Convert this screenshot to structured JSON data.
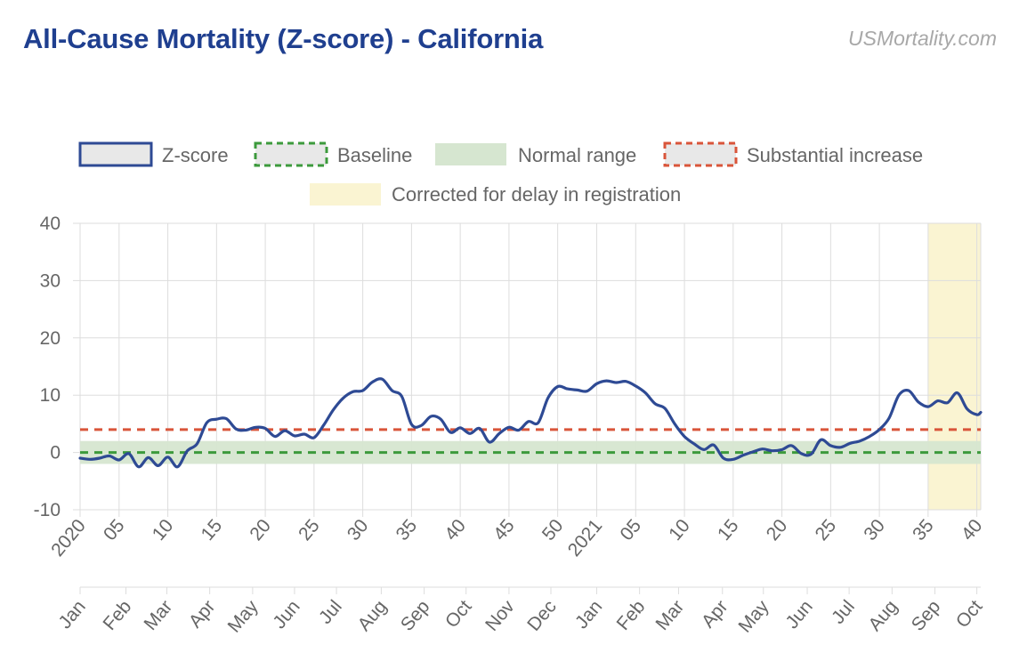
{
  "title": "All-Cause Mortality (Z-score) - California",
  "watermark": "USMortality.com",
  "colors": {
    "zscore": "#2e4a94",
    "baseline": "#3c9a3c",
    "normal_range": "#d6e6d0",
    "substantial": "#d9553a",
    "corrected": "#faf4d2",
    "grid": "#dddddd",
    "text": "#666666"
  },
  "legend": {
    "zscore": "Z-score",
    "baseline": "Baseline",
    "normal_range": "Normal range",
    "substantial": "Substantial increase",
    "corrected": "Corrected for delay in registration"
  },
  "chart_data": {
    "type": "line",
    "x_unit": "week index (0 = 2020 week 1)",
    "ylim": [
      -10,
      40
    ],
    "y_ticks": [
      -10,
      0,
      10,
      20,
      30,
      40
    ],
    "week_ticks": [
      {
        "w": 0,
        "label": "2020"
      },
      {
        "w": 4,
        "label": "05"
      },
      {
        "w": 9,
        "label": "10"
      },
      {
        "w": 14,
        "label": "15"
      },
      {
        "w": 19,
        "label": "20"
      },
      {
        "w": 24,
        "label": "25"
      },
      {
        "w": 29,
        "label": "30"
      },
      {
        "w": 34,
        "label": "35"
      },
      {
        "w": 39,
        "label": "40"
      },
      {
        "w": 44,
        "label": "45"
      },
      {
        "w": 49,
        "label": "50"
      },
      {
        "w": 53,
        "label": "2021"
      },
      {
        "w": 57,
        "label": "05"
      },
      {
        "w": 62,
        "label": "10"
      },
      {
        "w": 67,
        "label": "15"
      },
      {
        "w": 72,
        "label": "20"
      },
      {
        "w": 77,
        "label": "25"
      },
      {
        "w": 82,
        "label": "30"
      },
      {
        "w": 87,
        "label": "35"
      },
      {
        "w": 92,
        "label": "40"
      }
    ],
    "month_ticks": [
      {
        "w": 0,
        "label": "Jan"
      },
      {
        "w": 4.7,
        "label": "Feb"
      },
      {
        "w": 8.9,
        "label": "Mar"
      },
      {
        "w": 13.3,
        "label": "Apr"
      },
      {
        "w": 17.7,
        "label": "May"
      },
      {
        "w": 22.0,
        "label": "Jun"
      },
      {
        "w": 26.3,
        "label": "Jul"
      },
      {
        "w": 30.9,
        "label": "Aug"
      },
      {
        "w": 35.3,
        "label": "Sep"
      },
      {
        "w": 39.6,
        "label": "Oct"
      },
      {
        "w": 44.0,
        "label": "Nov"
      },
      {
        "w": 48.3,
        "label": "Dec"
      },
      {
        "w": 53.0,
        "label": "Jan"
      },
      {
        "w": 57.4,
        "label": "Feb"
      },
      {
        "w": 61.4,
        "label": "Mar"
      },
      {
        "w": 65.9,
        "label": "Apr"
      },
      {
        "w": 70.1,
        "label": "May"
      },
      {
        "w": 74.6,
        "label": "Jun"
      },
      {
        "w": 78.9,
        "label": "Jul"
      },
      {
        "w": 83.3,
        "label": "Aug"
      },
      {
        "w": 87.7,
        "label": "Sep"
      },
      {
        "w": 92.0,
        "label": "Oct"
      }
    ],
    "x_max": 92.4,
    "baseline": 0,
    "substantial_increase": 4,
    "normal_range": [
      -2,
      2
    ],
    "corrected_range": [
      87.0,
      92.4
    ],
    "series": [
      {
        "name": "Z-score",
        "points": [
          [
            0,
            -1
          ],
          [
            1,
            -1.2
          ],
          [
            2,
            -1
          ],
          [
            3,
            -0.6
          ],
          [
            4,
            -1.3
          ],
          [
            5,
            -0.2
          ],
          [
            6,
            -2.5
          ],
          [
            7,
            -0.9
          ],
          [
            8,
            -2.3
          ],
          [
            9,
            -0.8
          ],
          [
            10,
            -2.5
          ],
          [
            11,
            0.3
          ],
          [
            12,
            1.5
          ],
          [
            13,
            5.2
          ],
          [
            14,
            5.8
          ],
          [
            15,
            5.9
          ],
          [
            16,
            4.1
          ],
          [
            17,
            3.9
          ],
          [
            18,
            4.4
          ],
          [
            19,
            4.2
          ],
          [
            20,
            2.8
          ],
          [
            21,
            3.8
          ],
          [
            22,
            2.9
          ],
          [
            23,
            3.2
          ],
          [
            24,
            2.6
          ],
          [
            25,
            4.8
          ],
          [
            26,
            7.5
          ],
          [
            27,
            9.5
          ],
          [
            28,
            10.6
          ],
          [
            29,
            10.8
          ],
          [
            30,
            12.3
          ],
          [
            31,
            12.8
          ],
          [
            32,
            10.8
          ],
          [
            33,
            9.8
          ],
          [
            34,
            4.9
          ],
          [
            35,
            4.7
          ],
          [
            36,
            6.3
          ],
          [
            37,
            5.8
          ],
          [
            38,
            3.5
          ],
          [
            39,
            4.3
          ],
          [
            40,
            3.3
          ],
          [
            41,
            4.2
          ],
          [
            42,
            1.8
          ],
          [
            43,
            3.3
          ],
          [
            44,
            4.4
          ],
          [
            45,
            3.9
          ],
          [
            46,
            5.4
          ],
          [
            47,
            5.2
          ],
          [
            48,
            9.5
          ],
          [
            49,
            11.5
          ],
          [
            50,
            11.1
          ],
          [
            51,
            10.9
          ],
          [
            52,
            10.7
          ],
          [
            53,
            12.0
          ],
          [
            54,
            12.5
          ],
          [
            55,
            12.2
          ],
          [
            56,
            12.4
          ],
          [
            57,
            11.6
          ],
          [
            58,
            10.4
          ],
          [
            59,
            8.5
          ],
          [
            60,
            7.7
          ],
          [
            61,
            5.0
          ],
          [
            62,
            2.8
          ],
          [
            63,
            1.5
          ],
          [
            64,
            0.5
          ],
          [
            65,
            1.3
          ],
          [
            66,
            -1.0
          ],
          [
            67,
            -1.2
          ],
          [
            68,
            -0.5
          ],
          [
            69,
            0.1
          ],
          [
            70,
            0.6
          ],
          [
            71,
            0.3
          ],
          [
            72,
            0.5
          ],
          [
            73,
            1.2
          ],
          [
            74,
            -0.2
          ],
          [
            75,
            -0.3
          ],
          [
            76,
            2.2
          ],
          [
            77,
            1.2
          ],
          [
            78,
            0.9
          ],
          [
            79,
            1.6
          ],
          [
            80,
            2.0
          ],
          [
            81,
            2.8
          ],
          [
            82,
            4.0
          ],
          [
            83,
            6.0
          ],
          [
            84,
            10.0
          ],
          [
            85,
            10.8
          ],
          [
            86,
            8.8
          ],
          [
            87,
            8.0
          ],
          [
            88,
            9.0
          ],
          [
            89,
            8.7
          ],
          [
            90,
            10.4
          ],
          [
            91,
            7.6
          ],
          [
            92,
            6.6
          ],
          [
            92.4,
            7.0
          ]
        ]
      }
    ]
  }
}
